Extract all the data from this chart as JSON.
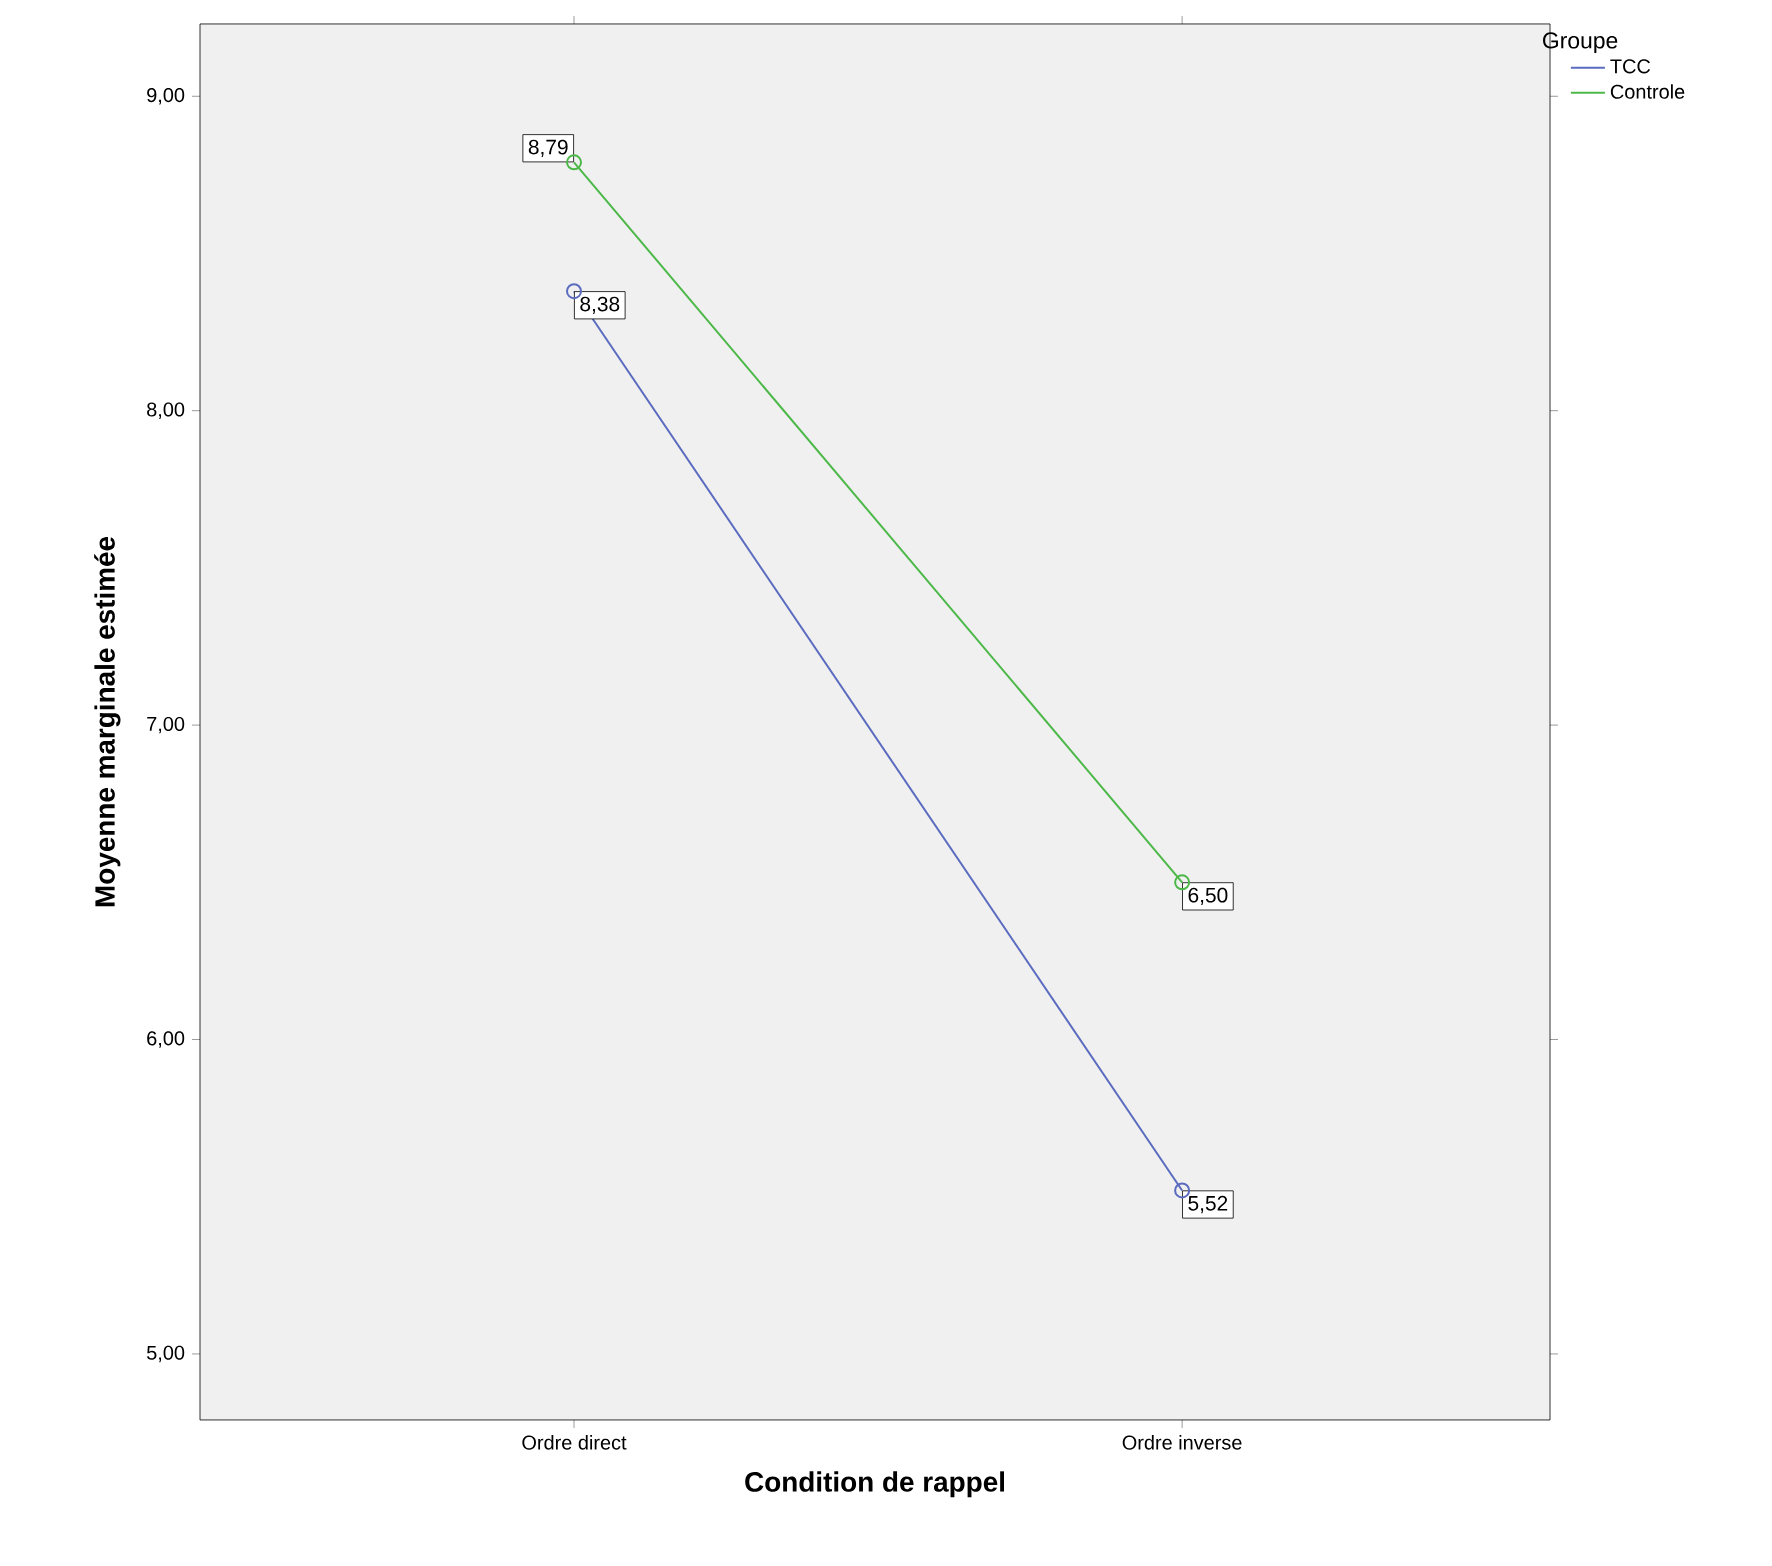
{
  "chart_data": {
    "type": "line",
    "xlabel": "Condition de rappel",
    "ylabel": "Moyenne marginale estimée",
    "legend_title": "Groupe",
    "categories": [
      "Ordre direct",
      "Ordre inverse"
    ],
    "series": [
      {
        "name": "TCC",
        "color": "#5b6bbf",
        "values": [
          8.38,
          5.52
        ],
        "value_labels": [
          "8,38",
          "5,52"
        ]
      },
      {
        "name": "Controle",
        "color": "#4cb848",
        "values": [
          8.79,
          6.5
        ],
        "value_labels": [
          "8,79",
          "6,50"
        ]
      }
    ],
    "ylim": [
      4.79,
      9.23
    ],
    "yticks": [
      {
        "value": 5,
        "label": "5,00"
      },
      {
        "value": 6,
        "label": "6,00"
      },
      {
        "value": 7,
        "label": "7,00"
      },
      {
        "value": 8,
        "label": "8,00"
      },
      {
        "value": 9,
        "label": "9,00"
      }
    ],
    "grid": false,
    "legend": "top right",
    "marker": "circle",
    "line_style": "solid"
  }
}
